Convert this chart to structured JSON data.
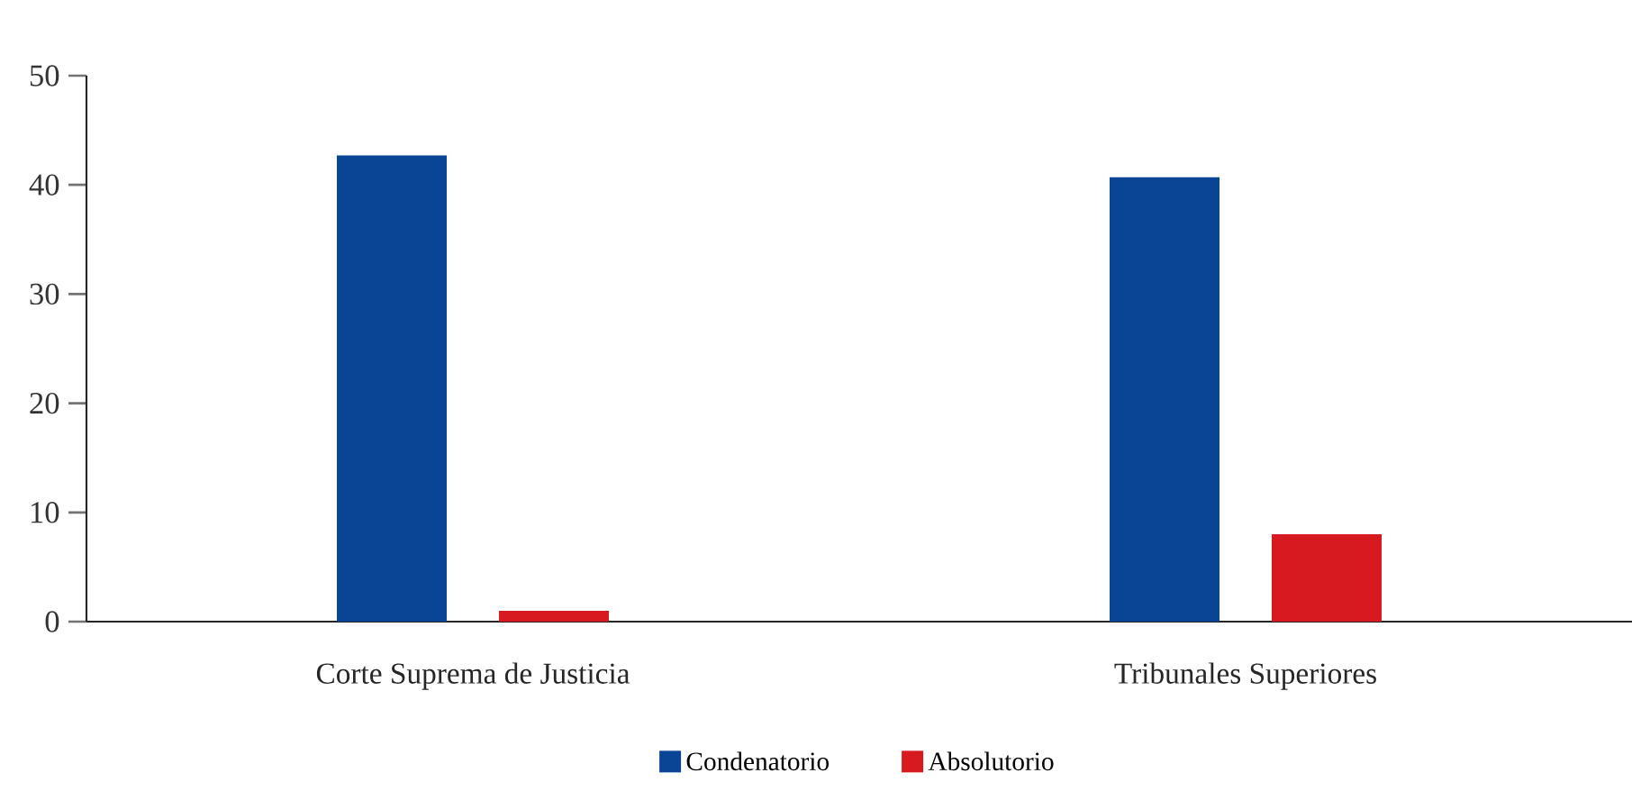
{
  "chart_data": {
    "type": "bar",
    "categories": [
      "Corte Suprema de Justicia",
      "Tribunales Superiores"
    ],
    "series": [
      {
        "name": "Condenatorio",
        "color": "#0a4595",
        "values": [
          42.7,
          40.7
        ]
      },
      {
        "name": "Absolutorio",
        "color": "#d71920",
        "values": [
          1,
          8
        ]
      }
    ],
    "ylim": [
      0,
      50
    ],
    "yticks": [
      0,
      10,
      20,
      30,
      40,
      50
    ],
    "legend": "bottom"
  }
}
